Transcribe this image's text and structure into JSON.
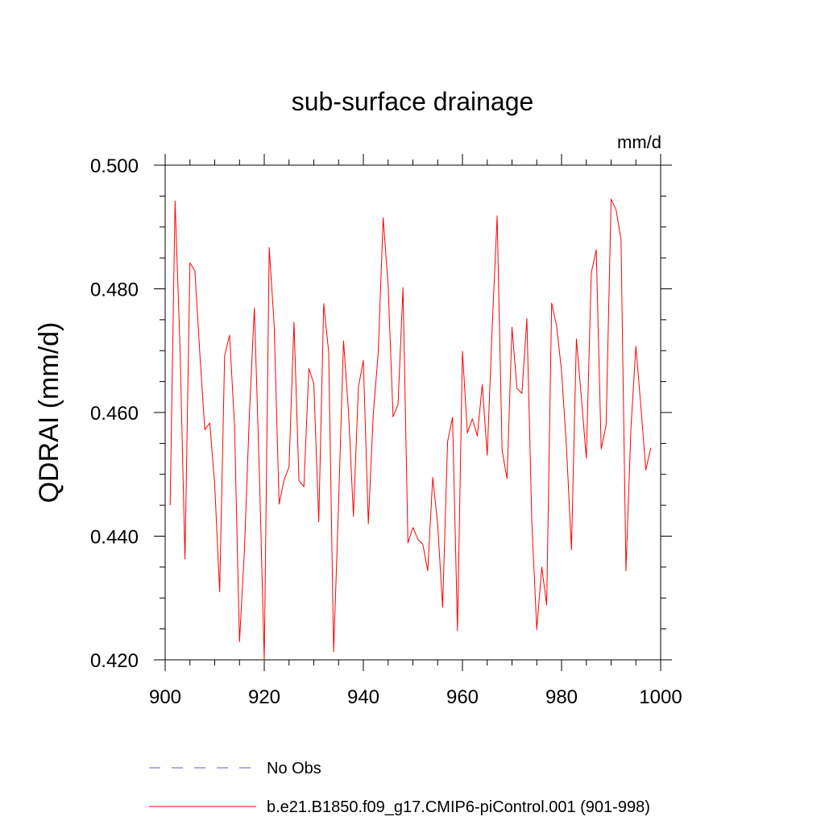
{
  "chart_data": {
    "type": "line",
    "title": "sub-surface drainage",
    "units": "mm/d",
    "ylabel": "QDRAI  (mm/d)",
    "xlabel": "",
    "xlim": [
      900,
      1000
    ],
    "ylim": [
      0.42,
      0.5
    ],
    "xticks": [
      900,
      920,
      940,
      960,
      980,
      1000
    ],
    "xtick_labels": [
      "900",
      "920",
      "940",
      "960",
      "980",
      "1000"
    ],
    "yticks": [
      0.42,
      0.44,
      0.46,
      0.48,
      0.5
    ],
    "ytick_labels": [
      "0.420",
      "0.440",
      "0.460",
      "0.480",
      "0.500"
    ],
    "legend": [
      {
        "label": "No Obs",
        "style": "dashed",
        "color": "#6a5acd"
      },
      {
        "label": "b.e21.B1850.f09_g17.CMIP6-piControl.001 (901-998)",
        "style": "solid",
        "color": "#ff0000"
      }
    ],
    "series": [
      {
        "name": "b.e21.B1850.f09_g17.CMIP6-piControl.001 (901-998)",
        "color": "#ff0000",
        "x_start": 901,
        "values": [
          0.445,
          0.4942,
          0.4705,
          0.4363,
          0.4842,
          0.4829,
          0.4695,
          0.4572,
          0.4583,
          0.4483,
          0.431,
          0.4692,
          0.4725,
          0.4579,
          0.4229,
          0.4377,
          0.4597,
          0.4769,
          0.4505,
          0.42,
          0.4867,
          0.4741,
          0.4452,
          0.4491,
          0.4512,
          0.4746,
          0.449,
          0.448,
          0.4671,
          0.4647,
          0.4423,
          0.4776,
          0.4698,
          0.4213,
          0.4452,
          0.4716,
          0.4602,
          0.4432,
          0.4641,
          0.4684,
          0.442,
          0.4597,
          0.4697,
          0.4915,
          0.4805,
          0.4593,
          0.4613,
          0.4802,
          0.4389,
          0.4414,
          0.4395,
          0.4387,
          0.4344,
          0.4495,
          0.4419,
          0.4285,
          0.4553,
          0.4592,
          0.4247,
          0.4699,
          0.4567,
          0.459,
          0.4562,
          0.4645,
          0.4531,
          0.4737,
          0.4918,
          0.4539,
          0.4493,
          0.4738,
          0.4639,
          0.4631,
          0.4752,
          0.4423,
          0.4249,
          0.435,
          0.4289,
          0.4777,
          0.474,
          0.4667,
          0.4544,
          0.4378,
          0.4719,
          0.4624,
          0.4526,
          0.4826,
          0.4863,
          0.4541,
          0.458,
          0.4945,
          0.4928,
          0.488,
          0.4344,
          0.4574,
          0.4707,
          0.4611,
          0.4507,
          0.4543
        ]
      }
    ]
  }
}
